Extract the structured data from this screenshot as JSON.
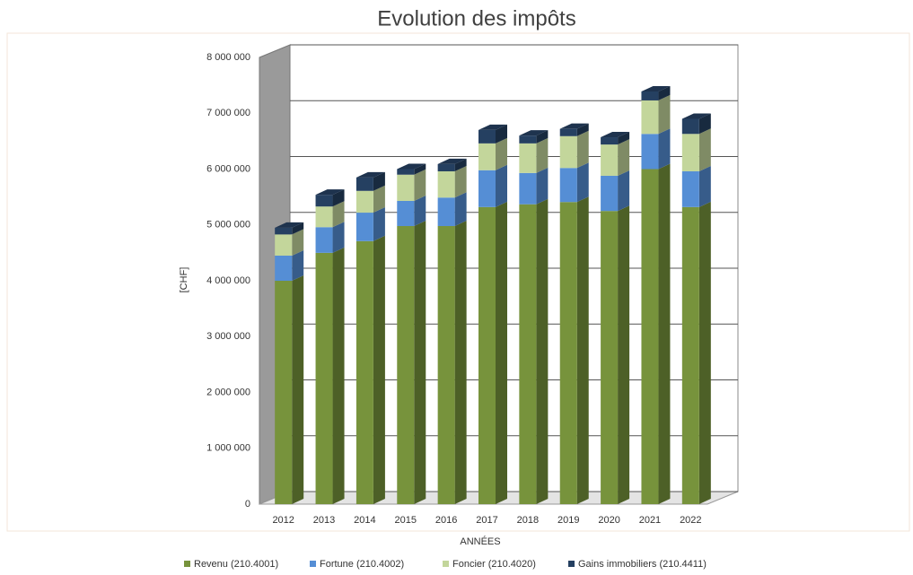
{
  "chart_data": {
    "type": "bar3d_stacked",
    "title": "Evolution des impôts",
    "y_label": "[CHF]",
    "x_label": "ANNÉES",
    "categories": [
      "2012",
      "2013",
      "2014",
      "2015",
      "2016",
      "2017",
      "2018",
      "2019",
      "2020",
      "2021",
      "2022"
    ],
    "series": [
      {
        "name": "Revenu (210.4001)",
        "color": "#77933c",
        "values": [
          4000000,
          4500000,
          4710000,
          4980000,
          4980000,
          5320000,
          5370000,
          5410000,
          5250000,
          6000000,
          5320000
        ]
      },
      {
        "name": "Fortune (210.4002)",
        "color": "#558ed5",
        "values": [
          450000,
          460000,
          510000,
          450000,
          510000,
          660000,
          560000,
          610000,
          630000,
          630000,
          640000
        ]
      },
      {
        "name": "Foncier (210.4020)",
        "color": "#c3d69b",
        "values": [
          380000,
          370000,
          390000,
          470000,
          470000,
          480000,
          530000,
          570000,
          560000,
          600000,
          670000
        ]
      },
      {
        "name": "Gains immobiliers (210.4411)",
        "color": "#254061",
        "values": [
          120000,
          210000,
          240000,
          100000,
          130000,
          240000,
          140000,
          130000,
          130000,
          160000,
          270000
        ]
      }
    ],
    "ylim": [
      0,
      8000000
    ],
    "yticks": [
      0,
      {
        "value": 1000000,
        "label": "1 000 000"
      },
      {
        "value": 2000000,
        "label": "2 000 000"
      },
      {
        "value": 3000000,
        "label": "3 000 000"
      },
      {
        "value": 4000000,
        "label": "4 000 000"
      },
      {
        "value": 5000000,
        "label": "5 000 000"
      },
      {
        "value": 6000000,
        "label": "6 000 000"
      },
      {
        "value": 7000000,
        "label": "7 000 000"
      },
      {
        "value": 8000000,
        "label": "8 000 000"
      }
    ],
    "grid": true,
    "legend": "bottom"
  }
}
